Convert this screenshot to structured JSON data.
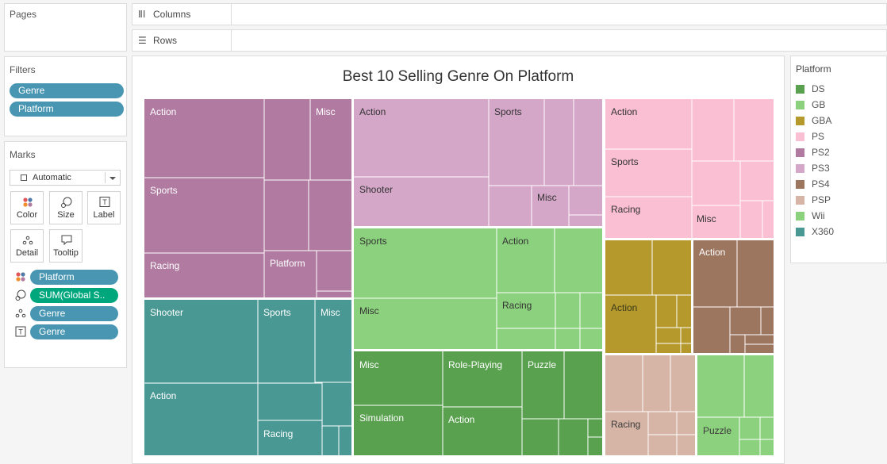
{
  "pages": {
    "title": "Pages"
  },
  "shelves": {
    "columns": "Columns",
    "rows": "Rows"
  },
  "filters": {
    "title": "Filters",
    "pills": [
      "Genre",
      "Platform"
    ]
  },
  "marks": {
    "title": "Marks",
    "type": "Automatic",
    "buttons": {
      "color": "Color",
      "size": "Size",
      "label": "Label",
      "detail": "Detail",
      "tooltip": "Tooltip"
    },
    "fields": [
      "Platform",
      "SUM(Global S..",
      "Genre",
      "Genre"
    ]
  },
  "legend": {
    "title": "Platform",
    "items": [
      {
        "name": "DS",
        "color": "#59a14f"
      },
      {
        "name": "GB",
        "color": "#8cd17d"
      },
      {
        "name": "GBA",
        "color": "#b6992d"
      },
      {
        "name": "PS",
        "color": "#fabfd2"
      },
      {
        "name": "PS2",
        "color": "#b07aa1"
      },
      {
        "name": "PS3",
        "color": "#d4a6c8"
      },
      {
        "name": "PS4",
        "color": "#9d7660"
      },
      {
        "name": "PSP",
        "color": "#d7b5a6"
      },
      {
        "name": "Wii",
        "color": "#8cd17d"
      },
      {
        "name": "X360",
        "color": "#499894"
      }
    ]
  },
  "chart_data": {
    "type": "treemap",
    "title": "Best 10 Selling Genre On Platform",
    "colors": {
      "PS2": "#b07aa1",
      "PS3": "#d4a6c8",
      "PS": "#fabfd2",
      "X360": "#499894",
      "Wii": "#8cd17d",
      "DS": "#59a14f",
      "GBA": "#b6992d",
      "PS4": "#9d7660",
      "PSP": "#d7b5a6",
      "GB": "#8cd17d"
    },
    "labels": [
      {
        "platform": "PS2",
        "genre": "Action"
      },
      {
        "platform": "PS2",
        "genre": "Misc"
      },
      {
        "platform": "PS2",
        "genre": "Sports"
      },
      {
        "platform": "PS2",
        "genre": "Racing"
      },
      {
        "platform": "PS2",
        "genre": "Platform"
      },
      {
        "platform": "PS3",
        "genre": "Action"
      },
      {
        "platform": "PS3",
        "genre": "Sports"
      },
      {
        "platform": "PS3",
        "genre": "Shooter"
      },
      {
        "platform": "PS3",
        "genre": "Misc"
      },
      {
        "platform": "PS",
        "genre": "Action"
      },
      {
        "platform": "PS",
        "genre": "Sports"
      },
      {
        "platform": "PS",
        "genre": "Racing"
      },
      {
        "platform": "PS",
        "genre": "Misc"
      },
      {
        "platform": "X360",
        "genre": "Shooter"
      },
      {
        "platform": "X360",
        "genre": "Sports"
      },
      {
        "platform": "X360",
        "genre": "Misc"
      },
      {
        "platform": "X360",
        "genre": "Action"
      },
      {
        "platform": "X360",
        "genre": "Racing"
      },
      {
        "platform": "Wii",
        "genre": "Sports"
      },
      {
        "platform": "Wii",
        "genre": "Action"
      },
      {
        "platform": "Wii",
        "genre": "Misc"
      },
      {
        "platform": "Wii",
        "genre": "Racing"
      },
      {
        "platform": "DS",
        "genre": "Misc"
      },
      {
        "platform": "DS",
        "genre": "Role-Playing"
      },
      {
        "platform": "DS",
        "genre": "Puzzle"
      },
      {
        "platform": "DS",
        "genre": "Simulation"
      },
      {
        "platform": "DS",
        "genre": "Action"
      },
      {
        "platform": "GBA",
        "genre": "Action"
      },
      {
        "platform": "PS4",
        "genre": "Action"
      },
      {
        "platform": "PSP",
        "genre": "Racing"
      },
      {
        "platform": "GB",
        "genre": "Puzzle"
      }
    ]
  }
}
